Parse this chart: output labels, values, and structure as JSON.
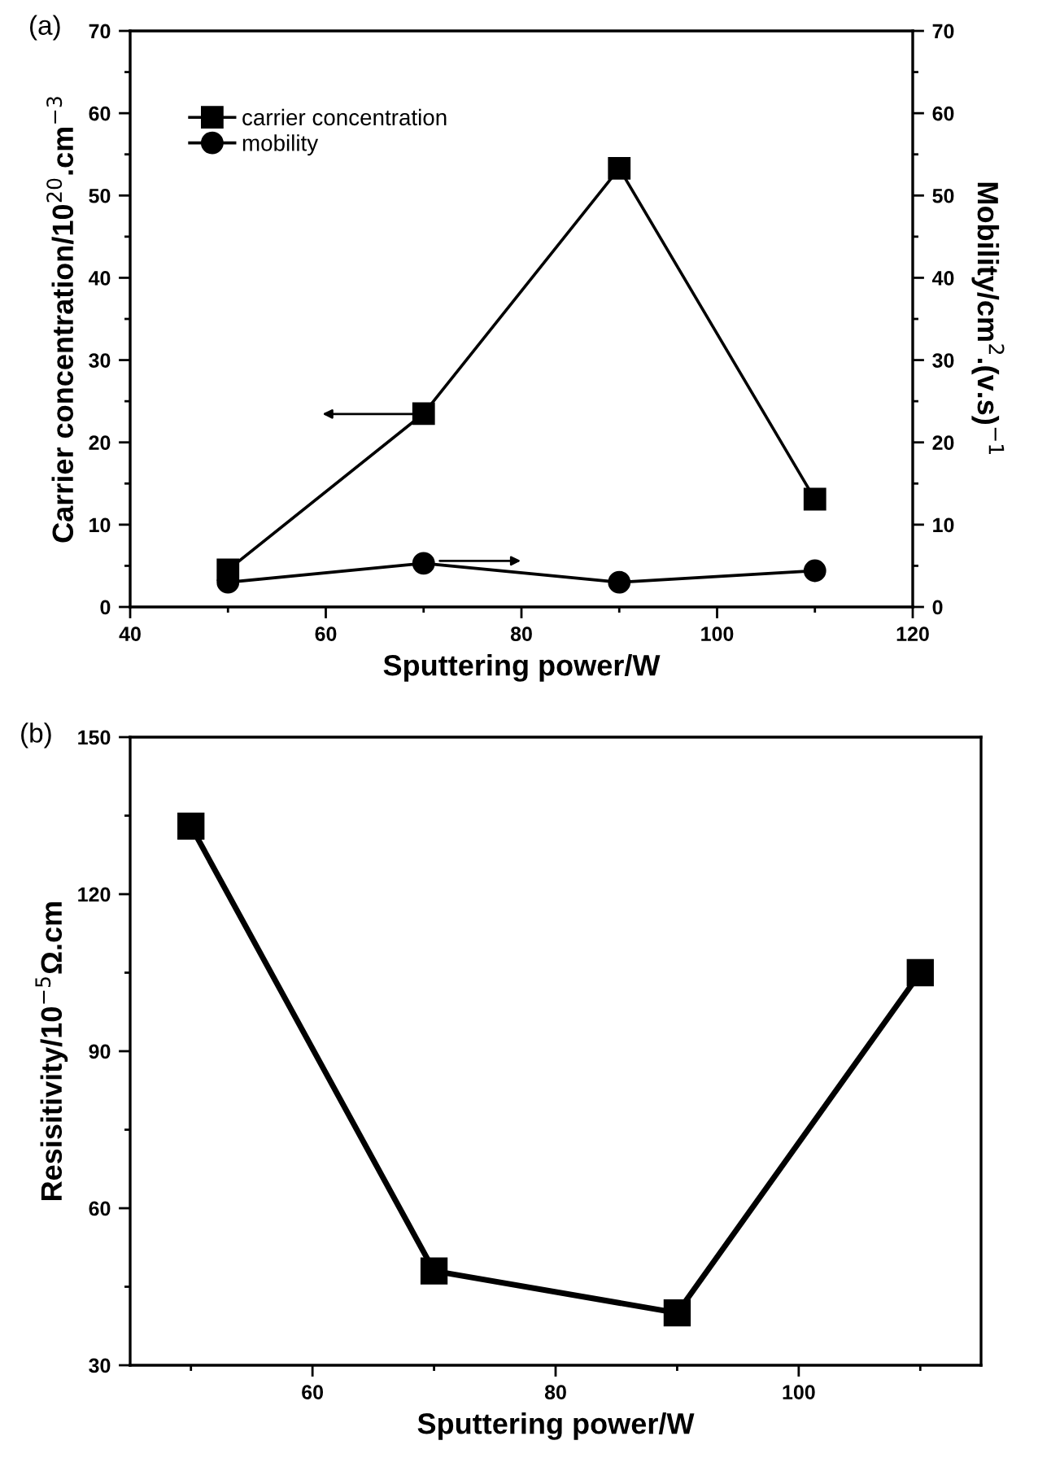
{
  "chart_data": [
    {
      "type": "line",
      "title": "(a)",
      "xlabel": "Sputtering power/W",
      "ylabel": "Carrier concentration/10$^{20}$.cm$^{−3}$",
      "y2label": "Mobility/cm$^{2}$.(v.s)$^{−1}$",
      "x": [
        50,
        70,
        90,
        110
      ],
      "series": [
        {
          "name": "carrier concentration",
          "color": "#000000",
          "values": [
            4.5,
            23.5,
            53.3,
            13.1
          ],
          "marker": "square"
        },
        {
          "name": "mobility",
          "color": "#000000",
          "values": [
            3.0,
            5.3,
            3.0,
            4.4
          ],
          "marker": "circle",
          "axis": "y2"
        }
      ],
      "xlim": [
        40,
        120
      ],
      "xticks": [
        40,
        {
          "value": 50,
          "label": null
        },
        60,
        {
          "value": 70,
          "label": null
        },
        80,
        {
          "value": 90,
          "label": null
        },
        100,
        {
          "value": 110,
          "label": null
        },
        120
      ],
      "ylim": [
        0,
        70
      ],
      "yticks": [
        0,
        {
          "value": 5,
          "label": null
        },
        10,
        {
          "value": 15,
          "label": null
        },
        20,
        {
          "value": 25,
          "label": null
        },
        30,
        {
          "value": 35,
          "label": null
        },
        40,
        {
          "value": 45,
          "label": null
        },
        50,
        {
          "value": 55,
          "label": null
        },
        60,
        {
          "value": 65,
          "label": null
        },
        70
      ],
      "y2lim": [
        0,
        70
      ],
      "y2ticks": [
        0,
        {
          "value": 5,
          "label": null
        },
        10,
        {
          "value": 15,
          "label": null
        },
        20,
        {
          "value": 25,
          "label": null
        },
        30,
        {
          "value": 35,
          "label": null
        },
        40,
        {
          "value": 45,
          "label": null
        },
        50,
        {
          "value": 55,
          "label": null
        },
        60,
        {
          "value": 65,
          "label": null
        },
        70
      ],
      "legend": "top left",
      "grid": false,
      "line_style": "solid"
    },
    {
      "type": "line",
      "title": "(b)",
      "xlabel": "Sputtering power/W",
      "ylabel": "Resisitivity/10$^{−5}$Ω.cm",
      "x": [
        50,
        70,
        90,
        110
      ],
      "series": [
        {
          "color": "#000000",
          "values": [
            133,
            48,
            40,
            105
          ],
          "marker": "square"
        }
      ],
      "xlim": [
        45,
        115
      ],
      "xticks": [
        {
          "value": 50,
          "label": null
        },
        60,
        {
          "value": 70,
          "label": null
        },
        80,
        {
          "value": 90,
          "label": null
        },
        100,
        {
          "value": 110,
          "label": null
        }
      ],
      "ylim": [
        30,
        150
      ],
      "yticks": [
        30,
        {
          "value": 45,
          "label": null
        },
        60,
        {
          "value": 75,
          "label": null
        },
        90,
        {
          "value": 105,
          "label": null
        },
        120,
        {
          "value": 135,
          "label": null
        },
        150
      ],
      "grid": false,
      "line_style": "solid"
    }
  ]
}
